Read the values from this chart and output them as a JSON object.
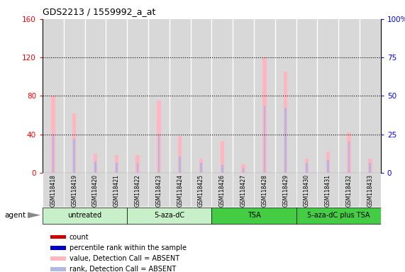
{
  "title": "GDS2213 / 1559992_a_at",
  "samples": [
    "GSM118418",
    "GSM118419",
    "GSM118420",
    "GSM118421",
    "GSM118422",
    "GSM118423",
    "GSM118424",
    "GSM118425",
    "GSM118426",
    "GSM118427",
    "GSM118428",
    "GSM118429",
    "GSM118430",
    "GSM118431",
    "GSM118432",
    "GSM118433"
  ],
  "group_labels": [
    "untreated",
    "5-aza-dC",
    "TSA",
    "5-aza-dC plus TSA"
  ],
  "group_colors": [
    "#c8f0c8",
    "#c8f0c8",
    "#44cc44",
    "#44cc44"
  ],
  "group_boundaries": [
    0,
    4,
    8,
    12,
    16
  ],
  "value_absent": [
    80,
    62,
    20,
    18,
    18,
    75,
    38,
    15,
    33,
    9,
    120,
    105,
    15,
    22,
    42,
    15
  ],
  "rank_absent": [
    40,
    35,
    12,
    10,
    10,
    40,
    17,
    10,
    8,
    5,
    70,
    68,
    10,
    13,
    32,
    10
  ],
  "ylim_left": [
    0,
    160
  ],
  "ylim_right": [
    0,
    100
  ],
  "yticks_left": [
    0,
    40,
    80,
    120,
    160
  ],
  "yticks_right": [
    0,
    25,
    50,
    75,
    100
  ],
  "yticklabels_right": [
    "0",
    "25",
    "50",
    "75",
    "100%"
  ],
  "value_color": "#FFB6C1",
  "rank_color": "#b0b8e8",
  "count_color": "#FF0000",
  "prank_color": "#0000cd",
  "bg_color": "#ffffff",
  "cell_color": "#d8d8d8",
  "legend_items": [
    {
      "label": "count",
      "color": "#cc0000"
    },
    {
      "label": "percentile rank within the sample",
      "color": "#0000cc"
    },
    {
      "label": "value, Detection Call = ABSENT",
      "color": "#FFB6C1"
    },
    {
      "label": "rank, Detection Call = ABSENT",
      "color": "#b0b8e8"
    }
  ],
  "agent_label": "agent"
}
